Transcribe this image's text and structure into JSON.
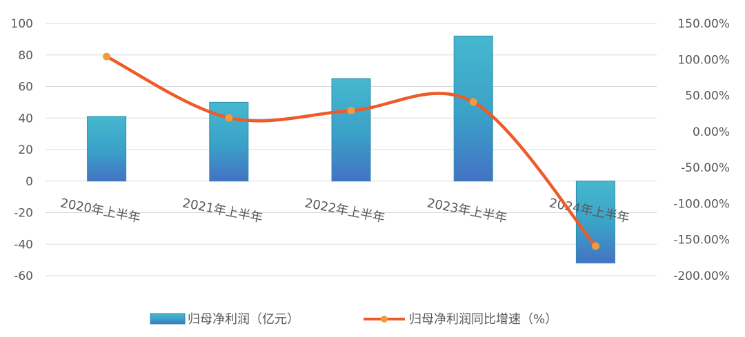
{
  "chart_data": {
    "type": "bar+line",
    "categories": [
      "2020年上半年",
      "2021年上半年",
      "2022年上半年",
      "2023年上半年",
      "2024年上半年"
    ],
    "series": [
      {
        "name": "归母净利润（亿元）",
        "type": "bar",
        "axis": "left",
        "values": [
          41,
          50,
          65,
          92,
          -52
        ],
        "color": "#3AAFC8"
      },
      {
        "name": "归母净利润同比增速（%）",
        "type": "line",
        "smooth": true,
        "axis": "right",
        "values": [
          104,
          19,
          29,
          41,
          -159
        ],
        "color": "#EE5A2A",
        "marker_color": "#F39A3A"
      }
    ],
    "y_left": {
      "ylim": [
        -60,
        100
      ],
      "ticks": [
        100,
        80,
        60,
        40,
        20,
        0,
        -20,
        -40,
        -60
      ],
      "tick_labels": [
        "100",
        "80",
        "60",
        "40",
        "20",
        "0",
        "-20",
        "-40",
        "-60"
      ]
    },
    "y_right": {
      "ylim": [
        -200,
        150
      ],
      "ticks": [
        150,
        100,
        50,
        0,
        -50,
        -100,
        -150,
        -200
      ],
      "tick_labels": [
        "150.00%",
        "100.00%",
        "50.00%",
        "0.00%",
        "-50.00%",
        "-100.00%",
        "-150.00%",
        "-200.00%"
      ]
    },
    "grid": true,
    "legend_position": "bottom",
    "xlabel": "",
    "ylabel": ""
  }
}
